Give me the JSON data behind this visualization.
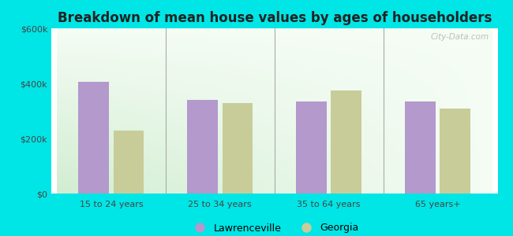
{
  "title": "Breakdown of mean house values by ages of householders",
  "categories": [
    "15 to 24 years",
    "25 to 34 years",
    "35 to 64 years",
    "65 years+"
  ],
  "lawrenceville": [
    405000,
    340000,
    335000,
    335000
  ],
  "georgia": [
    230000,
    330000,
    375000,
    310000
  ],
  "bar_color_lawrenceville": "#b399cc",
  "bar_color_georgia": "#c8cc99",
  "ylim": [
    0,
    600000
  ],
  "yticks": [
    0,
    200000,
    400000,
    600000
  ],
  "ytick_labels": [
    "$0",
    "$200k",
    "$400k",
    "$600k"
  ],
  "outer_bg": "#00e5e5",
  "legend_lawrenceville": "Lawrenceville",
  "legend_georgia": "Georgia",
  "watermark": "City-Data.com",
  "title_fontsize": 12,
  "tick_fontsize": 8,
  "legend_fontsize": 9
}
